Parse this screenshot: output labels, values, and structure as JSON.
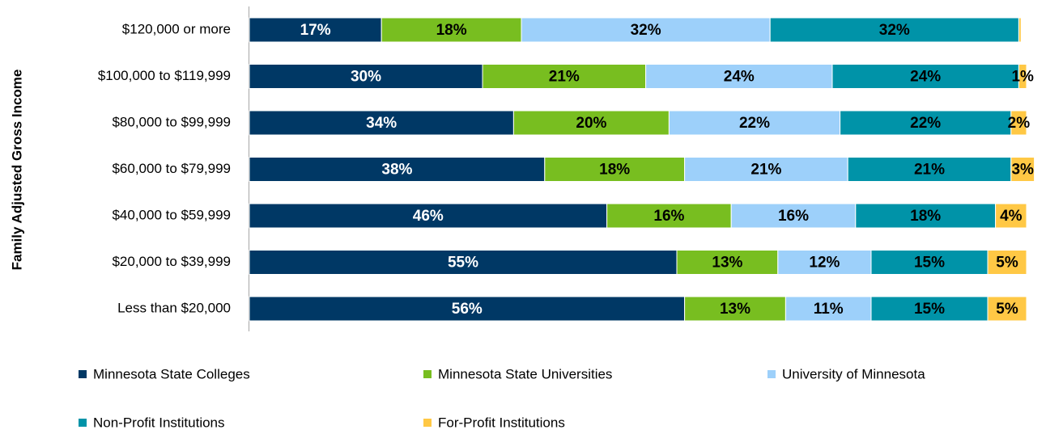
{
  "chart_data": {
    "type": "stacked_barh",
    "y_axis_label": "Family Adjusted Gross Income",
    "categories": [
      "$120,000 or more",
      "$100,000 to $119,999",
      "$80,000 to $99,999",
      "$60,000 to $79,999",
      "$40,000 to $59,999",
      "$20,000 to $39,999",
      "Less than $20,000"
    ],
    "xlim": [
      0,
      100
    ],
    "legend": "bottom",
    "series": [
      {
        "name": "Minnesota State Colleges",
        "color": "#003865",
        "label_color": "#ffffff",
        "values": [
          17,
          30,
          34,
          38,
          46,
          55,
          56
        ],
        "value_labels": [
          "17%",
          "30%",
          "34%",
          "38%",
          "46%",
          "55%",
          "56%"
        ]
      },
      {
        "name": "Minnesota State Universities",
        "color": "#78be20",
        "label_color": "#000000",
        "values": [
          18,
          21,
          20,
          18,
          16,
          13,
          13
        ],
        "value_labels": [
          "18%",
          "21%",
          "20%",
          "18%",
          "16%",
          "13%",
          "13%"
        ]
      },
      {
        "name": "University of Minnesota",
        "color": "#9dd0fa",
        "label_color": "#000000",
        "values": [
          32,
          24,
          22,
          21,
          16,
          12,
          11
        ],
        "value_labels": [
          "32%",
          "24%",
          "22%",
          "21%",
          "16%",
          "12%",
          "11%"
        ]
      },
      {
        "name": "Non-Profit Institutions",
        "color": "#0093a8",
        "label_color": "#000000",
        "values": [
          32,
          24,
          22,
          21,
          18,
          15,
          15
        ],
        "value_labels": [
          "32%",
          "24%",
          "22%",
          "21%",
          "18%",
          "15%",
          "15%"
        ]
      },
      {
        "name": "For-Profit Institutions",
        "color": "#ffc845",
        "label_color": "#000000",
        "values": [
          0.3,
          1,
          2,
          3,
          4,
          5,
          5
        ],
        "value_labels": [
          null,
          "1%",
          "2%",
          "3%",
          "4%",
          "5%",
          "5%"
        ]
      }
    ]
  }
}
